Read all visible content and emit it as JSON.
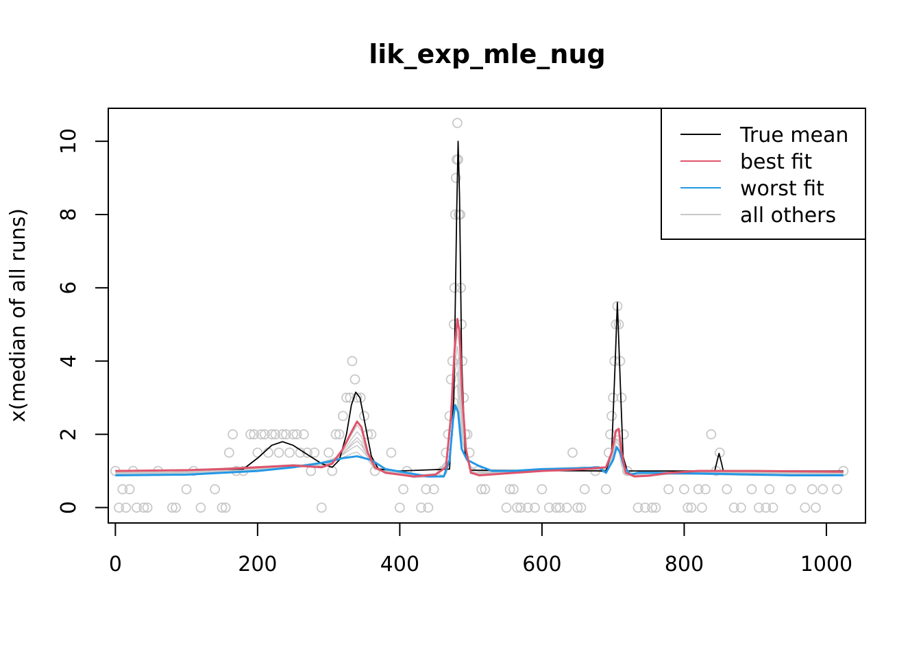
{
  "chart_data": {
    "type": "scatter",
    "title": "lik_exp_mle_nug",
    "xlabel": "",
    "ylabel": "x(median of all runs)",
    "xlim": [
      -10,
      1055
    ],
    "ylim": [
      -0.42,
      10.9
    ],
    "x_ticks": [
      0,
      200,
      400,
      600,
      800,
      1000
    ],
    "y_ticks": [
      0,
      2,
      4,
      6,
      8,
      10
    ],
    "legend_position": "top-right",
    "colors": {
      "true_mean": "#000000",
      "best_fit": "#DF536B",
      "worst_fit": "#2297E6",
      "all_others": "#C8C8C8",
      "points": "#C8C8C8"
    },
    "legend": [
      {
        "label": "True mean",
        "color": "#000000"
      },
      {
        "label": "best fit",
        "color": "#DF536B"
      },
      {
        "label": "worst fit",
        "color": "#2297E6"
      },
      {
        "label": "all others",
        "color": "#C8C8C8"
      }
    ],
    "series": [
      {
        "name": "True mean",
        "points": [
          [
            0,
            1
          ],
          [
            180,
            1.05
          ],
          [
            200,
            1.35
          ],
          [
            220,
            1.7
          ],
          [
            235,
            1.8
          ],
          [
            250,
            1.7
          ],
          [
            270,
            1.45
          ],
          [
            290,
            1.2
          ],
          [
            305,
            1.1
          ],
          [
            315,
            1.3
          ],
          [
            325,
            2
          ],
          [
            332,
            2.8
          ],
          [
            338,
            3.15
          ],
          [
            344,
            3
          ],
          [
            352,
            2.2
          ],
          [
            360,
            1.4
          ],
          [
            370,
            1.05
          ],
          [
            400,
            1
          ],
          [
            470,
            1.05
          ],
          [
            476,
            3
          ],
          [
            480,
            8
          ],
          [
            482,
            10
          ],
          [
            484,
            8.5
          ],
          [
            487,
            4
          ],
          [
            492,
            1.5
          ],
          [
            500,
            1.02
          ],
          [
            690,
            1
          ],
          [
            698,
            1.5
          ],
          [
            703,
            4
          ],
          [
            706,
            5.6
          ],
          [
            709,
            4
          ],
          [
            714,
            1.4
          ],
          [
            720,
            1
          ],
          [
            843,
            1
          ],
          [
            846,
            1.25
          ],
          [
            849,
            1.48
          ],
          [
            852,
            1.25
          ],
          [
            855,
            1
          ],
          [
            1024,
            1
          ]
        ]
      },
      {
        "name": "best fit",
        "points": [
          [
            0,
            1
          ],
          [
            100,
            1.02
          ],
          [
            150,
            1.05
          ],
          [
            200,
            1.1
          ],
          [
            250,
            1.15
          ],
          [
            290,
            1.1
          ],
          [
            305,
            1.2
          ],
          [
            320,
            1.6
          ],
          [
            333,
            2.1
          ],
          [
            340,
            2.35
          ],
          [
            346,
            2.2
          ],
          [
            355,
            1.5
          ],
          [
            365,
            1.1
          ],
          [
            380,
            0.95
          ],
          [
            420,
            0.85
          ],
          [
            450,
            0.9
          ],
          [
            465,
            1.1
          ],
          [
            472,
            2.5
          ],
          [
            477,
            4.3
          ],
          [
            481,
            5.15
          ],
          [
            484,
            4.8
          ],
          [
            488,
            3
          ],
          [
            493,
            1.6
          ],
          [
            500,
            0.95
          ],
          [
            512,
            0.88
          ],
          [
            540,
            0.92
          ],
          [
            600,
            1
          ],
          [
            660,
            1.05
          ],
          [
            690,
            1.1
          ],
          [
            698,
            1.5
          ],
          [
            704,
            2.1
          ],
          [
            708,
            2.15
          ],
          [
            712,
            1.5
          ],
          [
            718,
            0.95
          ],
          [
            730,
            0.85
          ],
          [
            750,
            0.87
          ],
          [
            780,
            0.95
          ],
          [
            820,
            1
          ],
          [
            900,
            1
          ],
          [
            1024,
            0.98
          ]
        ]
      },
      {
        "name": "worst fit",
        "points": [
          [
            0,
            0.88
          ],
          [
            100,
            0.9
          ],
          [
            200,
            1
          ],
          [
            250,
            1.1
          ],
          [
            300,
            1.25
          ],
          [
            320,
            1.35
          ],
          [
            340,
            1.4
          ],
          [
            360,
            1.3
          ],
          [
            380,
            1.05
          ],
          [
            410,
            0.95
          ],
          [
            440,
            0.85
          ],
          [
            462,
            0.85
          ],
          [
            470,
            1.3
          ],
          [
            475,
            2.4
          ],
          [
            478,
            2.8
          ],
          [
            482,
            2.6
          ],
          [
            487,
            1.6
          ],
          [
            495,
            1.3
          ],
          [
            510,
            1.15
          ],
          [
            530,
            1
          ],
          [
            560,
            1
          ],
          [
            600,
            1.05
          ],
          [
            650,
            1.07
          ],
          [
            680,
            1.1
          ],
          [
            690,
            0.95
          ],
          [
            700,
            1.3
          ],
          [
            705,
            1.65
          ],
          [
            710,
            1.5
          ],
          [
            716,
            1.1
          ],
          [
            725,
            0.9
          ],
          [
            735,
            0.95
          ],
          [
            760,
            0.95
          ],
          [
            850,
            0.92
          ],
          [
            950,
            0.88
          ],
          [
            1024,
            0.88
          ]
        ]
      }
    ],
    "points": [
      [
        0,
        1
      ],
      [
        5,
        0
      ],
      [
        10,
        0.5
      ],
      [
        15,
        0
      ],
      [
        20,
        0.5
      ],
      [
        25,
        1
      ],
      [
        30,
        0
      ],
      [
        40,
        0
      ],
      [
        45,
        0
      ],
      [
        60,
        1
      ],
      [
        80,
        0
      ],
      [
        85,
        0
      ],
      [
        100,
        0.5
      ],
      [
        110,
        1
      ],
      [
        120,
        0
      ],
      [
        140,
        0.5
      ],
      [
        150,
        0
      ],
      [
        155,
        0
      ],
      [
        160,
        1.5
      ],
      [
        165,
        2
      ],
      [
        170,
        1
      ],
      [
        180,
        1
      ],
      [
        190,
        2
      ],
      [
        195,
        2
      ],
      [
        200,
        1.5
      ],
      [
        205,
        2
      ],
      [
        210,
        2
      ],
      [
        215,
        1.5
      ],
      [
        220,
        2
      ],
      [
        225,
        2
      ],
      [
        230,
        1.5
      ],
      [
        235,
        2
      ],
      [
        240,
        2
      ],
      [
        245,
        1.5
      ],
      [
        250,
        2
      ],
      [
        255,
        2
      ],
      [
        260,
        1.5
      ],
      [
        265,
        2
      ],
      [
        270,
        1.5
      ],
      [
        275,
        1
      ],
      [
        280,
        1.5
      ],
      [
        290,
        0
      ],
      [
        300,
        1.5
      ],
      [
        305,
        1
      ],
      [
        310,
        2
      ],
      [
        315,
        2
      ],
      [
        320,
        2.5
      ],
      [
        325,
        3
      ],
      [
        330,
        3
      ],
      [
        333,
        4
      ],
      [
        337,
        3.5
      ],
      [
        340,
        3
      ],
      [
        345,
        3
      ],
      [
        350,
        2.5
      ],
      [
        355,
        2
      ],
      [
        360,
        2
      ],
      [
        365,
        1
      ],
      [
        388,
        1.5
      ],
      [
        400,
        0
      ],
      [
        405,
        0.5
      ],
      [
        410,
        1
      ],
      [
        430,
        0
      ],
      [
        437,
        0.5
      ],
      [
        440,
        0
      ],
      [
        448,
        0.5
      ],
      [
        460,
        1
      ],
      [
        465,
        1.5
      ],
      [
        468,
        2
      ],
      [
        470,
        2.5
      ],
      [
        472,
        3.5
      ],
      [
        474,
        4
      ],
      [
        476,
        5
      ],
      [
        477,
        6
      ],
      [
        478,
        8
      ],
      [
        479,
        9
      ],
      [
        480,
        9.5
      ],
      [
        481,
        10.5
      ],
      [
        482,
        9.5
      ],
      [
        483,
        8
      ],
      [
        485,
        8
      ],
      [
        486,
        6
      ],
      [
        487,
        5
      ],
      [
        488,
        4
      ],
      [
        490,
        3
      ],
      [
        492,
        2
      ],
      [
        495,
        2
      ],
      [
        498,
        1.5
      ],
      [
        510,
        1
      ],
      [
        515,
        0.5
      ],
      [
        520,
        0.5
      ],
      [
        550,
        0
      ],
      [
        555,
        0.5
      ],
      [
        560,
        0.5
      ],
      [
        565,
        0
      ],
      [
        570,
        0
      ],
      [
        580,
        0
      ],
      [
        590,
        0
      ],
      [
        600,
        0.5
      ],
      [
        610,
        0
      ],
      [
        620,
        0
      ],
      [
        625,
        0
      ],
      [
        635,
        0
      ],
      [
        643,
        1.5
      ],
      [
        650,
        0
      ],
      [
        655,
        0
      ],
      [
        660,
        0.5
      ],
      [
        675,
        1
      ],
      [
        690,
        0.5
      ],
      [
        694,
        1.5
      ],
      [
        696,
        2
      ],
      [
        698,
        2.5
      ],
      [
        700,
        3
      ],
      [
        702,
        4
      ],
      [
        704,
        5
      ],
      [
        706,
        5.5
      ],
      [
        708,
        5
      ],
      [
        710,
        4
      ],
      [
        712,
        3
      ],
      [
        715,
        2
      ],
      [
        720,
        1
      ],
      [
        735,
        0
      ],
      [
        745,
        0
      ],
      [
        755,
        0
      ],
      [
        760,
        0
      ],
      [
        778,
        0.5
      ],
      [
        800,
        0.5
      ],
      [
        805,
        0
      ],
      [
        810,
        0
      ],
      [
        820,
        0.5
      ],
      [
        825,
        0
      ],
      [
        830,
        0.5
      ],
      [
        838,
        2
      ],
      [
        845,
        1
      ],
      [
        850,
        1.5
      ],
      [
        860,
        0.5
      ],
      [
        870,
        0
      ],
      [
        880,
        0
      ],
      [
        895,
        0.5
      ],
      [
        905,
        0
      ],
      [
        915,
        0
      ],
      [
        920,
        0.5
      ],
      [
        925,
        0
      ],
      [
        950,
        0.5
      ],
      [
        970,
        0
      ],
      [
        980,
        0.5
      ],
      [
        985,
        0
      ],
      [
        995,
        0.5
      ],
      [
        1015,
        0.5
      ],
      [
        1024,
        1
      ]
    ]
  }
}
